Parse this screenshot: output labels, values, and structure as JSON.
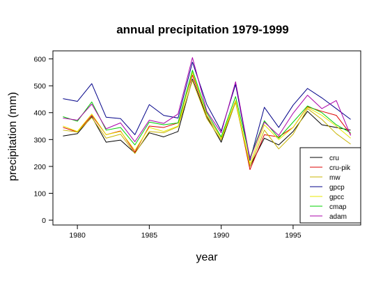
{
  "chart_data": {
    "type": "line",
    "title": "annual precipitation 1979-1999",
    "xlabel": "year",
    "ylabel": "precipitation (mm)",
    "xlim": [
      1978.3,
      1999.7
    ],
    "ylim": [
      -18,
      630
    ],
    "x_ticks": [
      1980,
      1985,
      1990,
      1995
    ],
    "y_ticks": [
      0,
      100,
      200,
      300,
      400,
      500,
      600
    ],
    "grid": false,
    "legend_position": "bottom-right",
    "x": [
      1979,
      1980,
      1981,
      1982,
      1983,
      1984,
      1985,
      1986,
      1987,
      1988,
      1989,
      1990,
      1991,
      1992,
      1993,
      1994,
      1995,
      1996,
      1997,
      1998,
      1999
    ],
    "series": [
      {
        "name": "cru",
        "color": "#000000",
        "values": [
          313,
          322,
          385,
          290,
          298,
          250,
          325,
          310,
          330,
          525,
          385,
          290,
          440,
          200,
          305,
          280,
          330,
          405,
          355,
          345,
          335
        ]
      },
      {
        "name": "cru-pik",
        "color": "#dd0000",
        "values": [
          345,
          328,
          390,
          318,
          332,
          253,
          350,
          345,
          362,
          540,
          390,
          305,
          445,
          188,
          318,
          310,
          345,
          422,
          405,
          390,
          320
        ]
      },
      {
        "name": "mw",
        "color": "#c8b400",
        "values": [
          335,
          328,
          382,
          305,
          320,
          248,
          330,
          325,
          348,
          520,
          378,
          298,
          438,
          200,
          335,
          265,
          320,
          415,
          375,
          322,
          283
        ]
      },
      {
        "name": "gpcp",
        "color": "#000088",
        "values": [
          452,
          442,
          508,
          383,
          378,
          318,
          430,
          390,
          380,
          588,
          430,
          332,
          505,
          222,
          420,
          345,
          428,
          490,
          455,
          415,
          375
        ]
      },
      {
        "name": "gpcc",
        "color": "#e8e800",
        "values": [
          350,
          330,
          395,
          318,
          330,
          260,
          345,
          330,
          350,
          550,
          388,
          305,
          445,
          210,
          355,
          300,
          345,
          420,
          390,
          350,
          305
        ]
      },
      {
        "name": "cmap",
        "color": "#00d000",
        "values": [
          385,
          368,
          440,
          335,
          345,
          280,
          365,
          355,
          362,
          558,
          400,
          310,
          460,
          232,
          370,
          305,
          365,
          425,
          400,
          355,
          325
        ]
      },
      {
        "name": "adam",
        "color": "#aa00aa",
        "values": [
          380,
          372,
          432,
          340,
          362,
          292,
          372,
          360,
          395,
          605,
          405,
          325,
          515,
          228,
          365,
          315,
          398,
          465,
          415,
          445,
          315
        ]
      }
    ]
  }
}
